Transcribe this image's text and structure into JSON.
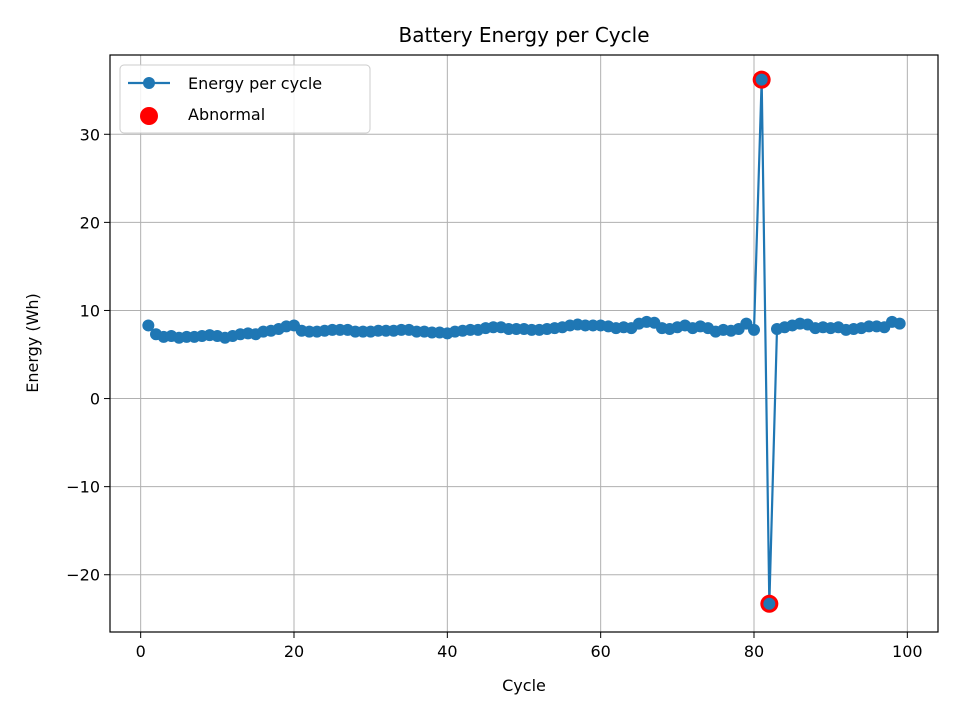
{
  "chart_data": {
    "type": "line",
    "title": "Battery Energy per Cycle",
    "xlabel": "Cycle",
    "ylabel": "Energy (Wh)",
    "xlim": [
      -4,
      104
    ],
    "ylim": [
      -26.5,
      39
    ],
    "xticks": [
      0,
      20,
      40,
      60,
      80,
      100
    ],
    "yticks": [
      -20,
      -10,
      0,
      10,
      20,
      30
    ],
    "ytick_labels": [
      "−20",
      "−10",
      "0",
      "10",
      "20",
      "30"
    ],
    "grid": true,
    "legend_position": "top-left",
    "series": [
      {
        "name": "Energy per cycle",
        "kind": "line+marker",
        "color": "#1f77b4",
        "x": [
          1,
          2,
          3,
          4,
          5,
          6,
          7,
          8,
          9,
          10,
          11,
          12,
          13,
          14,
          15,
          16,
          17,
          18,
          19,
          20,
          21,
          22,
          23,
          24,
          25,
          26,
          27,
          28,
          29,
          30,
          31,
          32,
          33,
          34,
          35,
          36,
          37,
          38,
          39,
          40,
          41,
          42,
          43,
          44,
          45,
          46,
          47,
          48,
          49,
          50,
          51,
          52,
          53,
          54,
          55,
          56,
          57,
          58,
          59,
          60,
          61,
          62,
          63,
          64,
          65,
          66,
          67,
          68,
          69,
          70,
          71,
          72,
          73,
          74,
          75,
          76,
          77,
          78,
          79,
          80,
          81,
          82,
          83,
          84,
          85,
          86,
          87,
          88,
          89,
          90,
          91,
          92,
          93,
          94,
          95,
          96,
          97,
          98,
          99
        ],
        "y": [
          8.3,
          7.3,
          7.0,
          7.1,
          6.9,
          7.0,
          7.0,
          7.1,
          7.2,
          7.1,
          6.9,
          7.1,
          7.3,
          7.4,
          7.3,
          7.6,
          7.7,
          7.9,
          8.2,
          8.3,
          7.7,
          7.6,
          7.6,
          7.7,
          7.8,
          7.8,
          7.8,
          7.6,
          7.6,
          7.6,
          7.7,
          7.7,
          7.7,
          7.8,
          7.8,
          7.6,
          7.6,
          7.5,
          7.5,
          7.4,
          7.6,
          7.7,
          7.8,
          7.8,
          8.0,
          8.1,
          8.1,
          7.9,
          7.9,
          7.9,
          7.8,
          7.8,
          7.9,
          8.0,
          8.1,
          8.3,
          8.4,
          8.3,
          8.3,
          8.3,
          8.2,
          8.0,
          8.1,
          8.0,
          8.5,
          8.7,
          8.6,
          8.0,
          7.9,
          8.1,
          8.3,
          8.0,
          8.2,
          8.0,
          7.6,
          7.8,
          7.7,
          7.9,
          8.5,
          7.8,
          36.2,
          -23.3,
          7.9,
          8.1,
          8.3,
          8.5,
          8.4,
          8.0,
          8.1,
          8.0,
          8.1,
          7.8,
          7.9,
          8.0,
          8.2,
          8.2,
          8.1,
          8.7,
          8.5
        ]
      },
      {
        "name": "Abnormal",
        "kind": "scatter",
        "color": "#ff0000",
        "x": [
          81,
          82
        ],
        "y": [
          36.2,
          -23.3
        ]
      }
    ]
  }
}
